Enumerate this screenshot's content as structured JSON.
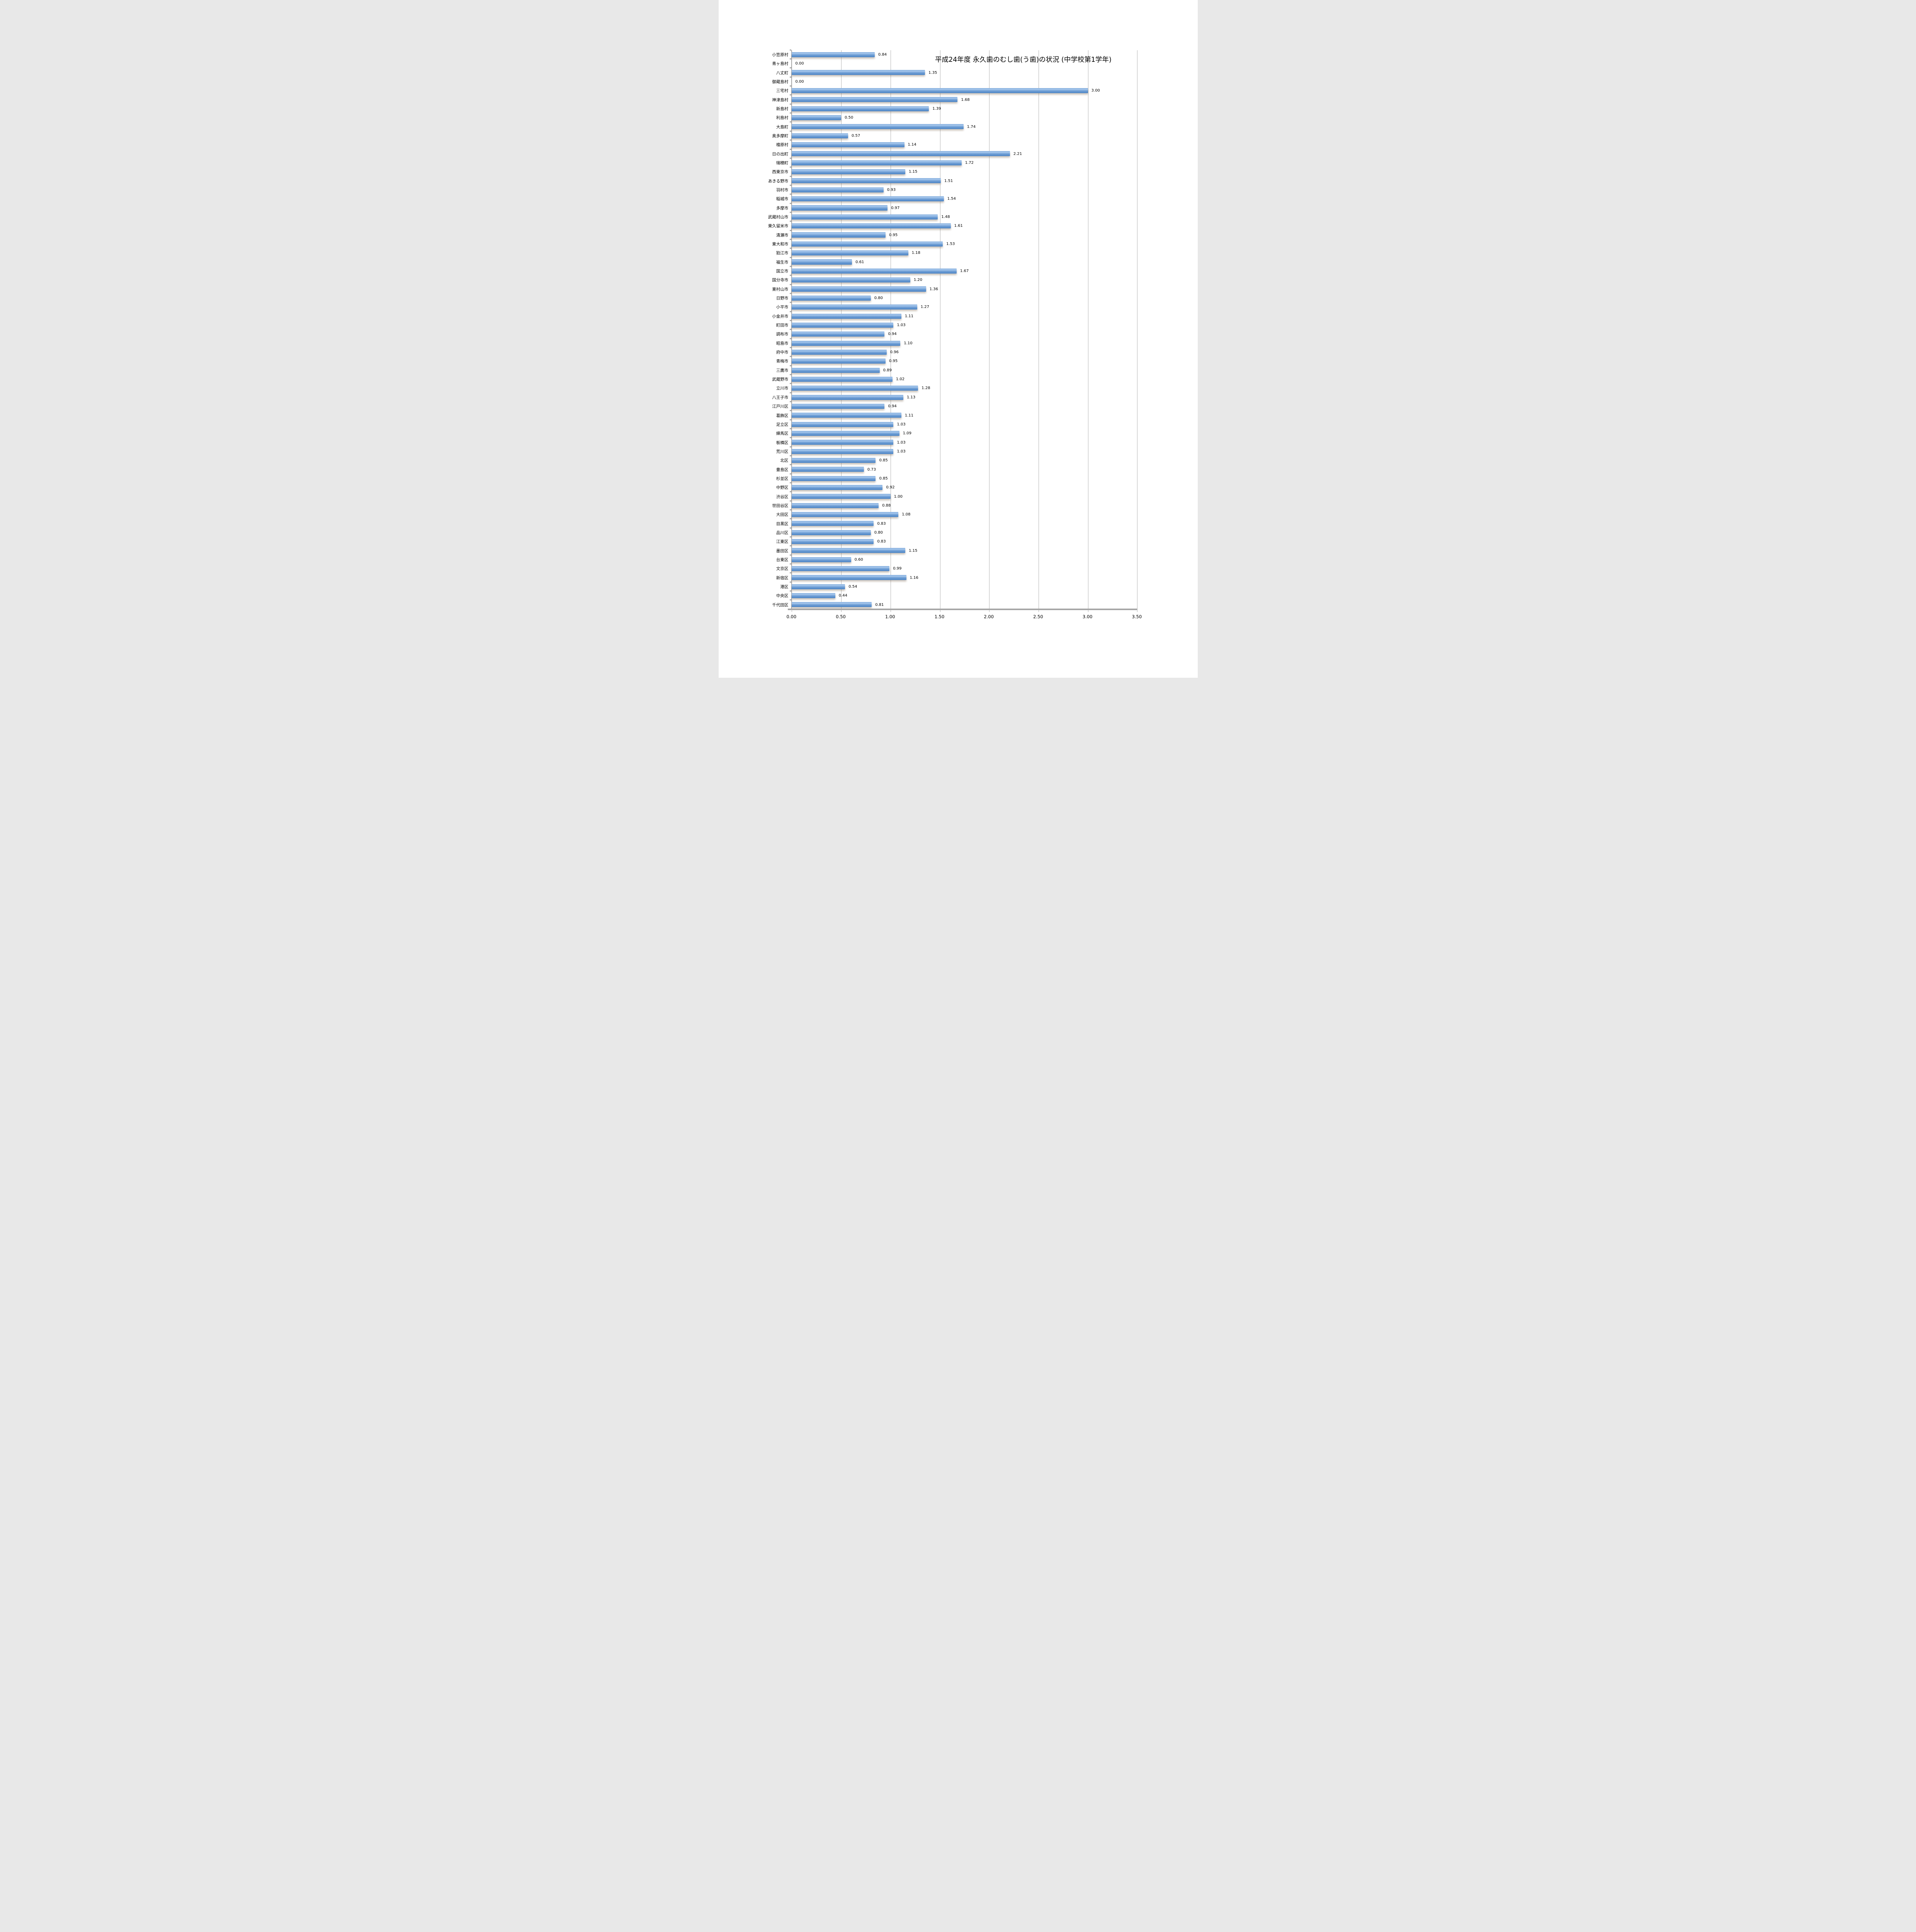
{
  "chart_data": {
    "type": "bar",
    "orientation": "horizontal",
    "title": "平成24年度 永久歯のむし歯(う歯)の状況 (中学校第1学年)",
    "xlabel": "",
    "ylabel": "",
    "xlim": [
      0,
      3.5
    ],
    "grid": true,
    "legend": "none",
    "bar_color_hex": "#6d9dd4",
    "gridline_color_hex": "#b3b3b3",
    "categories": [
      "小笠原村",
      "青ヶ島村",
      "八丈町",
      "御蔵島村",
      "三宅村",
      "神津島村",
      "新島村",
      "利島村",
      "大島町",
      "奥多摩町",
      "檜原村",
      "日の出町",
      "瑞穂町",
      "西東京市",
      "あきる野市",
      "羽村市",
      "稲城市",
      "多摩市",
      "武蔵村山市",
      "東久留米市",
      "清瀬市",
      "東大和市",
      "狛江市",
      "福生市",
      "国立市",
      "国分寺市",
      "東村山市",
      "日野市",
      "小平市",
      "小金井市",
      "町田市",
      "調布市",
      "昭島市",
      "府中市",
      "青梅市",
      "三鷹市",
      "武蔵野市",
      "立川市",
      "八王子市",
      "江戸川区",
      "葛飾区",
      "足立区",
      "練馬区",
      "板橋区",
      "荒川区",
      "北区",
      "豊島区",
      "杉並区",
      "中野区",
      "渋谷区",
      "世田谷区",
      "大田区",
      "目黒区",
      "品川区",
      "江東区",
      "墨田区",
      "台東区",
      "文京区",
      "新宿区",
      "港区",
      "中央区",
      "千代田区"
    ],
    "values": [
      0.84,
      0.0,
      1.35,
      0.0,
      3.0,
      1.68,
      1.39,
      0.5,
      1.74,
      0.57,
      1.14,
      2.21,
      1.72,
      1.15,
      1.51,
      0.93,
      1.54,
      0.97,
      1.48,
      1.61,
      0.95,
      1.53,
      1.18,
      0.61,
      1.67,
      1.2,
      1.36,
      0.8,
      1.27,
      1.11,
      1.03,
      0.94,
      1.1,
      0.96,
      0.95,
      0.89,
      1.02,
      1.28,
      1.13,
      0.94,
      1.11,
      1.03,
      1.09,
      1.03,
      1.03,
      0.85,
      0.73,
      0.85,
      0.92,
      1.0,
      0.88,
      1.08,
      0.83,
      0.8,
      0.83,
      1.15,
      0.6,
      0.99,
      1.16,
      0.54,
      0.44,
      0.81
    ],
    "xticks": [
      "0.00",
      "0.50",
      "1.00",
      "1.50",
      "2.00",
      "2.50",
      "3.00",
      "3.50"
    ]
  }
}
